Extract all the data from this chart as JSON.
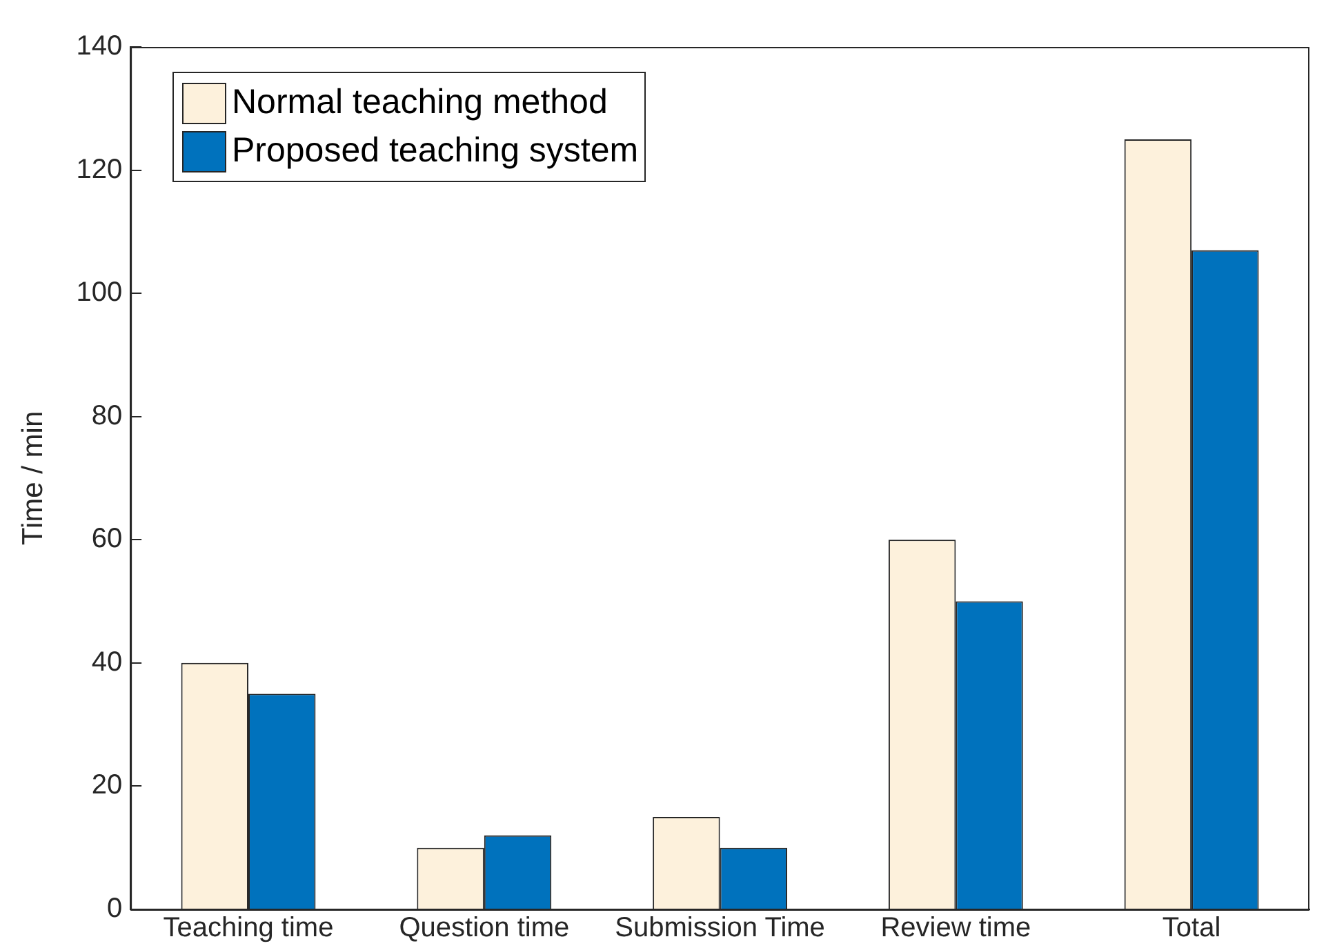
{
  "chart_data": {
    "type": "bar",
    "ylabel": "Time / min",
    "categories": [
      "Teaching time",
      "Question time",
      "Submission Time",
      "Review time",
      "Total"
    ],
    "series": [
      {
        "name": "Normal teaching method",
        "color": "#fdf1dc",
        "values": [
          40,
          10,
          15,
          60,
          125
        ]
      },
      {
        "name": "Proposed teaching system",
        "color": "#0072bd",
        "values": [
          35,
          12,
          10,
          50,
          107
        ]
      }
    ],
    "ylim": [
      0,
      140
    ],
    "yticks": [
      0,
      20,
      40,
      60,
      80,
      100,
      120,
      140
    ],
    "grid": false,
    "legend": "top left"
  }
}
